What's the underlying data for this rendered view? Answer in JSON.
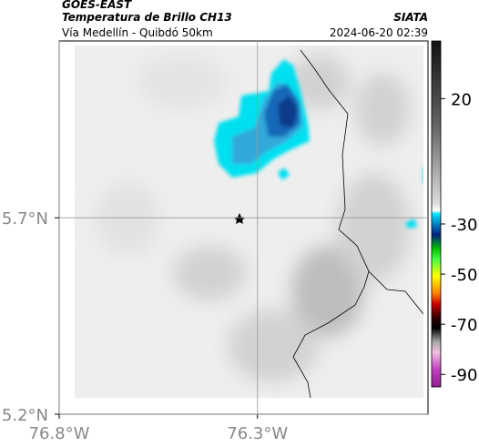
{
  "header": {
    "source": "GOES-EAST",
    "title": "Temperatura de Brillo CH13",
    "agency": "SIATA",
    "subtitle": "Vía Medellín - Quibdó 50km",
    "timestamp": "2024-06-20 02:39"
  },
  "map": {
    "xlim": [
      -76.8,
      -75.87
    ],
    "ylim": [
      5.2,
      6.15
    ],
    "xticks": [
      {
        "value": -76.8,
        "label": "76.8°W"
      },
      {
        "value": -76.3,
        "label": "76.3°W"
      }
    ],
    "yticks": [
      {
        "value": 5.2,
        "label": "5.2°N"
      },
      {
        "value": 5.7,
        "label": "5.7°N"
      }
    ],
    "grid": true
  },
  "colorbar": {
    "lim": [
      -95,
      43
    ],
    "ticks": [
      20,
      -30,
      -50,
      -70,
      -90
    ]
  }
}
